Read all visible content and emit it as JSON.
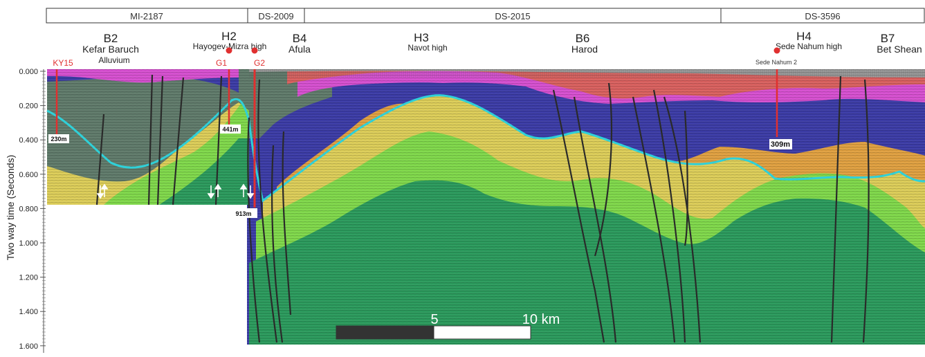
{
  "lines": [
    {
      "label": "MI-2187"
    },
    {
      "label": "DS-2009"
    },
    {
      "label": "DS-2015"
    },
    {
      "label": "DS-3596"
    }
  ],
  "structures": [
    {
      "code": "B2",
      "name": "Kefar Baruch"
    },
    {
      "code": "H2",
      "name": "Hayogev-Mizra high"
    },
    {
      "code": "B4",
      "name": "Afula"
    },
    {
      "code": "H3",
      "name": "Navot high"
    },
    {
      "code": "B6",
      "name": "Harod"
    },
    {
      "code": "H4",
      "name": "Sede Nahum high"
    },
    {
      "code": "B7",
      "name": "Bet Shean"
    }
  ],
  "wells": [
    {
      "name": "KY15",
      "depth": "230m"
    },
    {
      "name": "G1",
      "depth": "441m"
    },
    {
      "name": "G2",
      "depth": "913m"
    },
    {
      "name": "Sede Nahum 2",
      "depth": "309m"
    }
  ],
  "annotations": {
    "alluvium": "Alluvium"
  },
  "axis": {
    "ylabel": "Two way time (Seconds)",
    "ticks": [
      "0.000",
      "0.200",
      "0.400",
      "0.600",
      "0.800",
      "1.000",
      "1.200",
      "1.400",
      "1.600"
    ]
  },
  "scale_bar": {
    "mid_label": "5",
    "end_label": "10 km"
  },
  "colors": {
    "alluvium": "#9a9a9a",
    "red_unit": "#d9605e",
    "magenta_unit": "#d64fd0",
    "blue_unit": "#3b3ba6",
    "grey_green_unit": "#5f7a6a",
    "orange_unit": "#e0a040",
    "yellow_unit": "#dccd58",
    "light_green_unit": "#7fd84a",
    "dark_green_unit": "#2a9a5c",
    "horizon": "#2fd0d8",
    "well": "#e03030",
    "fault": "#2a2a2a"
  }
}
